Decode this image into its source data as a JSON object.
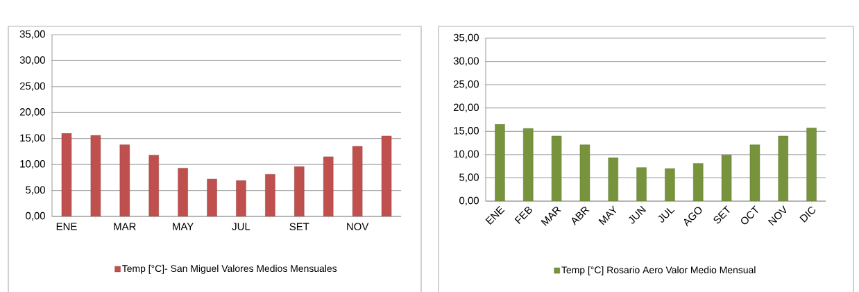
{
  "chart_data": [
    {
      "type": "bar",
      "categories": [
        "ENE",
        null,
        "MAR",
        null,
        "MAY",
        null,
        "JUL",
        null,
        "SET",
        null,
        "NOV",
        null
      ],
      "series": [
        {
          "name": "Temp [°C]- San Miguel Valores Medios Mensuales",
          "color": "#c0504d",
          "values": [
            16.0,
            15.6,
            13.8,
            11.8,
            9.3,
            7.2,
            6.9,
            8.1,
            9.6,
            11.5,
            13.5,
            15.5
          ]
        }
      ],
      "ylim": [
        0,
        35
      ],
      "yticks": [
        {
          "value": 0,
          "label": "0,00"
        },
        {
          "value": 5,
          "label": "5,00"
        },
        {
          "value": 10,
          "label": "10,00"
        },
        {
          "value": 15,
          "label": "15,00"
        },
        {
          "value": 20,
          "label": "20,00"
        },
        {
          "value": 25,
          "label": "25,00"
        },
        {
          "value": 30,
          "label": "30,00"
        },
        {
          "value": 35,
          "label": "35,00"
        }
      ],
      "grid": "y",
      "legend": "bottom"
    },
    {
      "type": "bar",
      "categories": [
        "ENE",
        "FEB",
        "MAR",
        "ABR",
        "MAY",
        "JUN",
        "JUL",
        "AGO",
        "SET",
        "OCT",
        "NOV",
        "DIC"
      ],
      "series": [
        {
          "name": "Temp [°C] Rosario Aero Valor Medio Mensual",
          "color": "#77933c",
          "values": [
            16.5,
            15.6,
            14.0,
            12.1,
            9.3,
            7.2,
            7.0,
            8.1,
            9.9,
            12.1,
            14.0,
            15.7
          ]
        }
      ],
      "ylim": [
        0,
        35
      ],
      "yticks": [
        {
          "value": 0,
          "label": "0,00"
        },
        {
          "value": 5,
          "label": "5,00"
        },
        {
          "value": 10,
          "label": "10,00"
        },
        {
          "value": 15,
          "label": "15,00"
        },
        {
          "value": 20,
          "label": "20,00"
        },
        {
          "value": 25,
          "label": "25,00"
        },
        {
          "value": 30,
          "label": "30,00"
        },
        {
          "value": 35,
          "label": "35,00"
        }
      ],
      "grid": "y",
      "legend": "bottom"
    }
  ]
}
